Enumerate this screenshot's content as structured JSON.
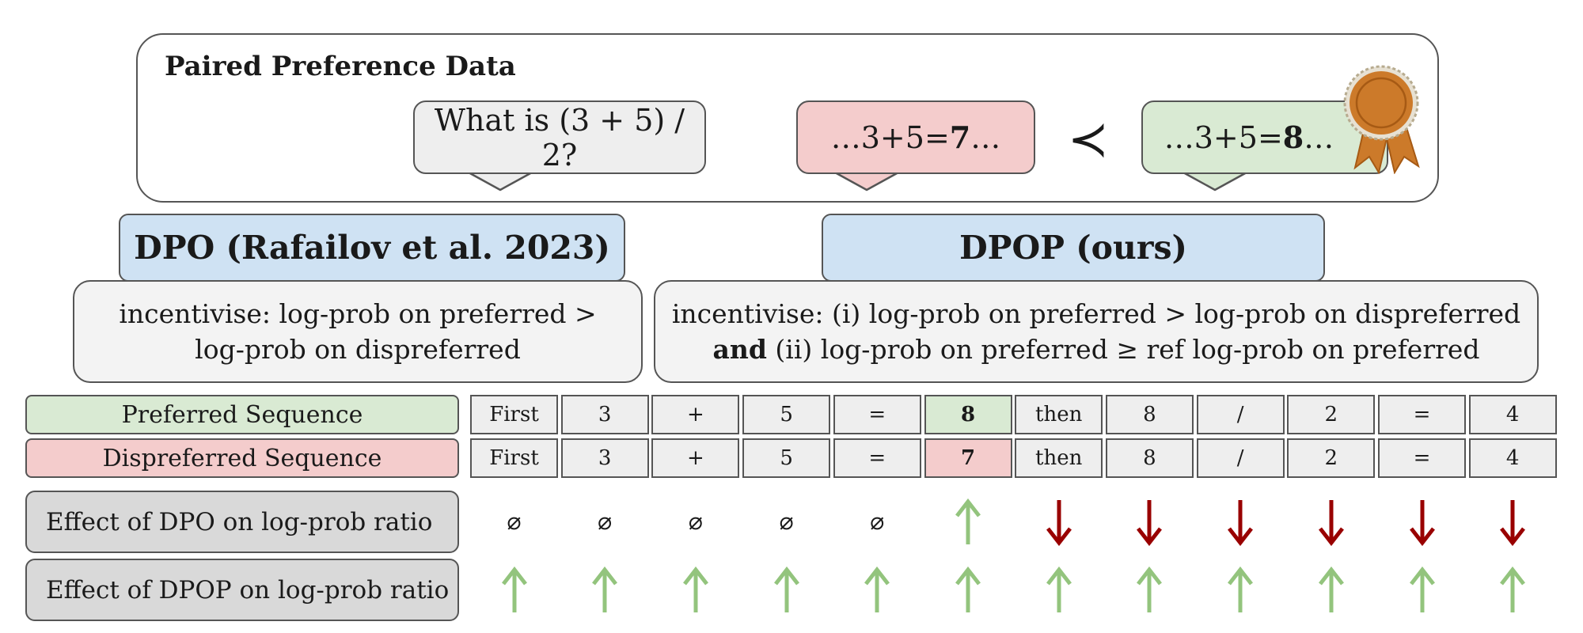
{
  "paired": {
    "title": "Paired Preference Data",
    "question": "What is (3 + 5) / 2?",
    "dispreferred": {
      "prefix": "…3+5=",
      "bold": "7",
      "suffix": "…"
    },
    "less_than": "≺",
    "preferred": {
      "prefix": "…3+5=",
      "bold": "8",
      "suffix": "…"
    }
  },
  "dpo": {
    "title": "DPO (Rafailov et al. 2023)",
    "desc_line1": "incentivise: log-prob on preferred >",
    "desc_line2": "log-prob on dispreferred"
  },
  "dpop": {
    "title": "DPOP (ours)",
    "desc_line1": "incentivise: (i) log-prob on preferred > log-prob on dispreferred",
    "desc_line2_bold": "and",
    "desc_line2_rest": " (ii) log-prob on preferred ≥ ref log-prob on preferred"
  },
  "sequences": {
    "preferred_label": "Preferred Sequence",
    "dispreferred_label": "Dispreferred Sequence",
    "preferred_tokens": [
      "First",
      "3",
      "+",
      "5",
      "=",
      "8",
      "then",
      "8",
      "/",
      "2",
      "=",
      "4"
    ],
    "dispreferred_tokens": [
      "First",
      "3",
      "+",
      "5",
      "=",
      "7",
      "then",
      "8",
      "/",
      "2",
      "=",
      "4"
    ],
    "highlight_index": 5
  },
  "effects": {
    "dpo_label": "Effect of DPO on log-prob ratio",
    "dpop_label": "Effect of DPOP on log-prob ratio",
    "dpo_effects": [
      "none",
      "none",
      "none",
      "none",
      "none",
      "up",
      "down",
      "down",
      "down",
      "down",
      "down",
      "down"
    ],
    "dpop_effects": [
      "up",
      "up",
      "up",
      "up",
      "up",
      "up",
      "up",
      "up",
      "up",
      "up",
      "up",
      "up"
    ],
    "none_symbol": "⌀"
  },
  "colors": {
    "preferred_fill": "#d9ead3",
    "dispreferred_fill": "#f4cccc",
    "header_fill": "#cfe2f3",
    "panel_fill": "#f3f3f3",
    "up_arrow": "#93c47d",
    "down_arrow": "#990000",
    "rosette": "#cc7a2a"
  }
}
